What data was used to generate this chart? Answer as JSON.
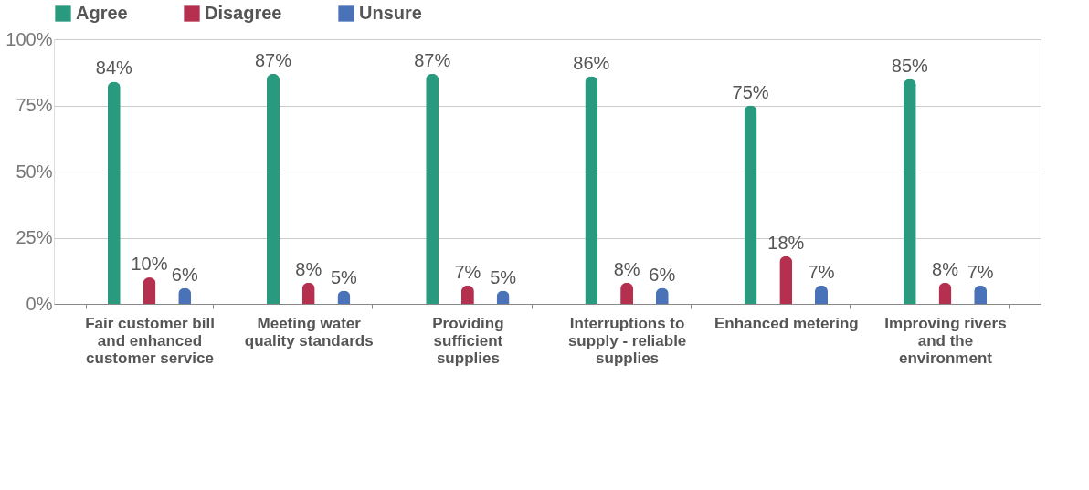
{
  "chart_data": {
    "type": "bar",
    "categories": [
      "Fair customer bill and enhanced customer service",
      "Meeting water quality standards",
      "Providing sufficient supplies",
      "Interruptions to supply - reliable supplies",
      "Enhanced metering",
      "Improving rivers and the environment"
    ],
    "series": [
      {
        "name": "Agree",
        "color": "#2a9a7e",
        "values": [
          84,
          87,
          87,
          86,
          75,
          85
        ],
        "value_labels": [
          "84%",
          "87%",
          "87%",
          "86%",
          "75%",
          "85%"
        ]
      },
      {
        "name": "Disagree",
        "color": "#b5304e",
        "values": [
          10,
          8,
          7,
          8,
          18,
          8
        ],
        "value_labels": [
          "10%",
          "8%",
          "7%",
          "8%",
          "18%",
          "8%"
        ]
      },
      {
        "name": "Unsure",
        "color": "#4a72b8",
        "values": [
          6,
          5,
          5,
          6,
          7,
          7
        ],
        "value_labels": [
          "6%",
          "5%",
          "5%",
          "6%",
          "7%",
          "7%"
        ]
      }
    ],
    "ylim": [
      0,
      100
    ],
    "yticks": [
      {
        "value": 0,
        "label": "0%"
      },
      {
        "value": 25,
        "label": "25%"
      },
      {
        "value": 50,
        "label": "50%"
      },
      {
        "value": 75,
        "label": "75%"
      },
      {
        "value": 100,
        "label": "100%"
      }
    ],
    "grid": "y",
    "legend": "top"
  }
}
